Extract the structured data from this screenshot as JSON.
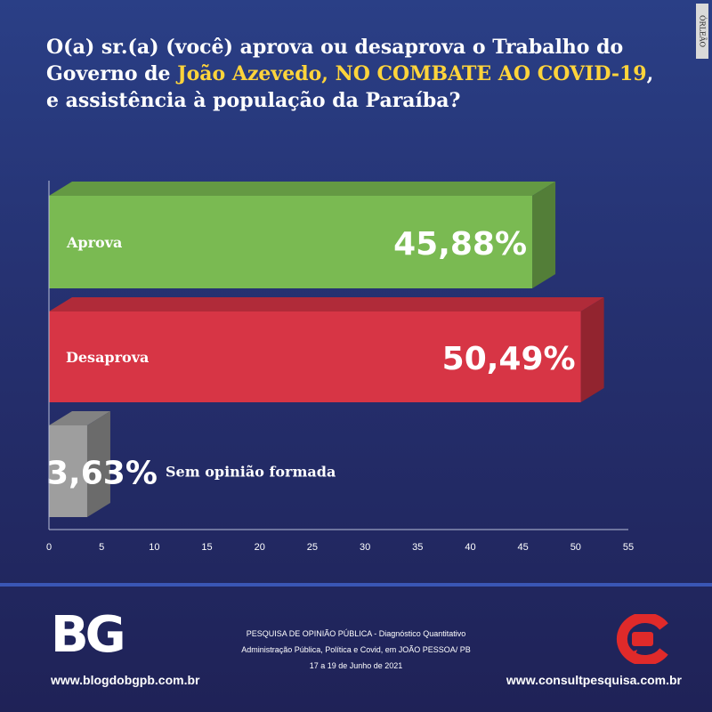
{
  "header": {
    "title_part1": "O(a) sr.(a) (você) aprova ou desaprova o Trabalho do Governo de ",
    "title_highlight": "João Azevedo, NO COMBATE AO COVID-19",
    "title_part2": ", e assistência à população da Paraíba?"
  },
  "watermark": "ÓRLEÃO",
  "chart_data": {
    "type": "bar",
    "orientation": "horizontal",
    "categories": [
      "Aprova",
      "Desaprova",
      "Sem opinião formada"
    ],
    "values": [
      45.88,
      50.49,
      3.63
    ],
    "value_labels": [
      "45,88%",
      "50,49%",
      "3,63%"
    ],
    "colors": [
      "#7aba52",
      "#d73545",
      "#9e9e9e"
    ],
    "xlim": [
      0,
      55
    ],
    "x_ticks": [
      0,
      5,
      10,
      15,
      20,
      25,
      30,
      35,
      40,
      45,
      50,
      55
    ],
    "grid": false,
    "title": "",
    "xlabel": "",
    "ylabel": ""
  },
  "footer": {
    "logo_left": "BG",
    "site_left": "www.blogdobgpb.com.br",
    "survey_lines": [
      "PESQUISA DE OPINIÃO PÚBLICA - Diagnóstico Quantitativo",
      "Administração Pública, Política e Covid, em JOÃO PESSOA/ PB",
      "17 a 19 de Junho de 2021"
    ],
    "site_right": "www.consultpesquisa.com.br"
  }
}
